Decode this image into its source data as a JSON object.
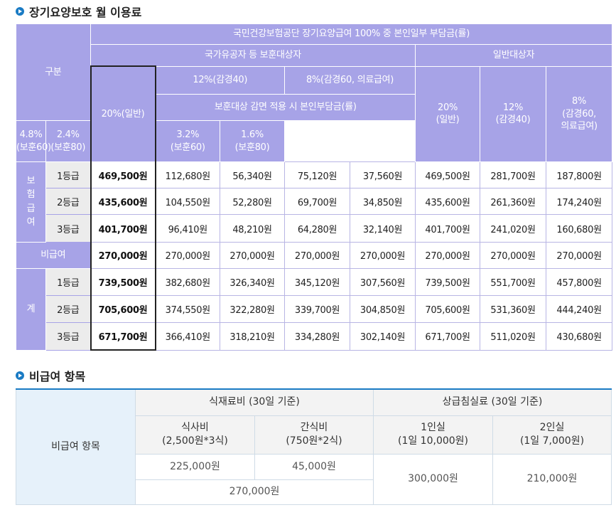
{
  "section1": {
    "title": "장기요양보호 월 이용료"
  },
  "table1": {
    "header_gubun": "구분",
    "header_top": "국민건강보험공단 장기요양급여 100% 중 본인일부 부담금(률)",
    "header_veterans": "국가유공자 등 보훈대상자",
    "header_general_group": "일반대상자",
    "header_20_general": "20%(일반)",
    "header_12": "12%(감경40)",
    "header_8": "8%(감경60, 의료급여)",
    "header_reduction": "보훈대상 감면 적용 시 본인부담금(률)",
    "sub_48": [
      "4.8%",
      "(보훈60)"
    ],
    "sub_24": [
      "2.4%",
      "(보훈80)"
    ],
    "sub_32": [
      "3.2%",
      "(보훈60)"
    ],
    "sub_16": [
      "1.6%",
      "(보훈80)"
    ],
    "gen_20": [
      "20%",
      "(일반)"
    ],
    "gen_12": [
      "12%",
      "(감경40)"
    ],
    "gen_8": [
      "8%",
      "(감경60,",
      "의료급여)"
    ],
    "insurance_label": [
      "보",
      "험",
      "급",
      "여"
    ],
    "non_benefit_label": "비급여",
    "total_label": "계",
    "grades": [
      "1등급",
      "2등급",
      "3등급"
    ],
    "insurance_rows": [
      [
        "469,500원",
        "112,680원",
        "56,340원",
        "75,120원",
        "37,560원",
        "469,500원",
        "281,700원",
        "187,800원"
      ],
      [
        "435,600원",
        "104,550원",
        "52,280원",
        "69,700원",
        "34,850원",
        "435,600원",
        "261,360원",
        "174,240원"
      ],
      [
        "401,700원",
        "96,410원",
        "48,210원",
        "64,280원",
        "32,140원",
        "401,700원",
        "241,020원",
        "160,680원"
      ]
    ],
    "non_benefit_row": [
      "270,000원",
      "270,000원",
      "270,000원",
      "270,000원",
      "270,000원",
      "270,000원",
      "270,000원",
      "270,000원"
    ],
    "total_rows": [
      [
        "739,500원",
        "382,680원",
        "326,340원",
        "345,120원",
        "307,560원",
        "739,500원",
        "551,700원",
        "457,800원"
      ],
      [
        "705,600원",
        "374,550원",
        "322,280원",
        "339,700원",
        "304,850원",
        "705,600원",
        "531,360원",
        "444,240원"
      ],
      [
        "671,700원",
        "366,410원",
        "318,210원",
        "334,280원",
        "302,140원",
        "671,700원",
        "511,020원",
        "430,680원"
      ]
    ]
  },
  "section2": {
    "title": "비급여 항목"
  },
  "table2": {
    "row_header": "비급여 항목",
    "food_header": "식재료비 (30일 기준)",
    "room_header": "상급침실료 (30일 기준)",
    "meal": [
      "식사비",
      "(2,500원*3식)"
    ],
    "snack": [
      "간식비",
      "(750원*2식)"
    ],
    "room1": [
      "1인실",
      "(1일 10,000원)"
    ],
    "room2": [
      "2인실",
      "(1일 7,000원)"
    ],
    "meal_value": "225,000원",
    "snack_value": "45,000원",
    "food_total": "270,000원",
    "room1_value": "300,000원",
    "room2_value": "210,000원"
  }
}
